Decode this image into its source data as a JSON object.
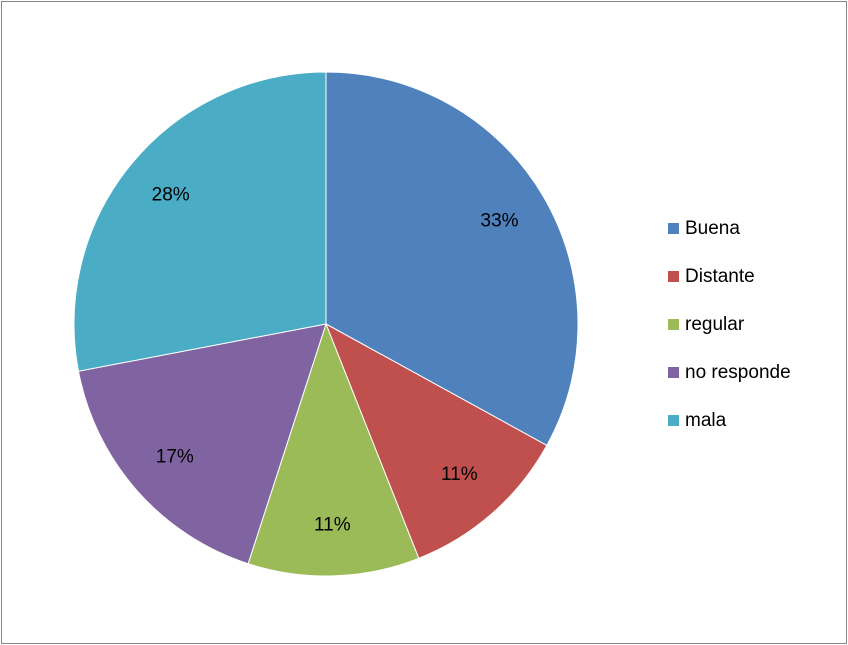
{
  "chart_data": {
    "type": "pie",
    "categories": [
      "Buena",
      "Distante",
      "regular",
      "no responde",
      "mala"
    ],
    "values": [
      33,
      11,
      11,
      17,
      28
    ],
    "value_labels": [
      "33%",
      "11%",
      "11%",
      "17%",
      "28%"
    ],
    "colors": [
      "#4f81bd",
      "#c0504d",
      "#9bbb59",
      "#8064a2",
      "#4bacc6"
    ],
    "legend": "right"
  }
}
